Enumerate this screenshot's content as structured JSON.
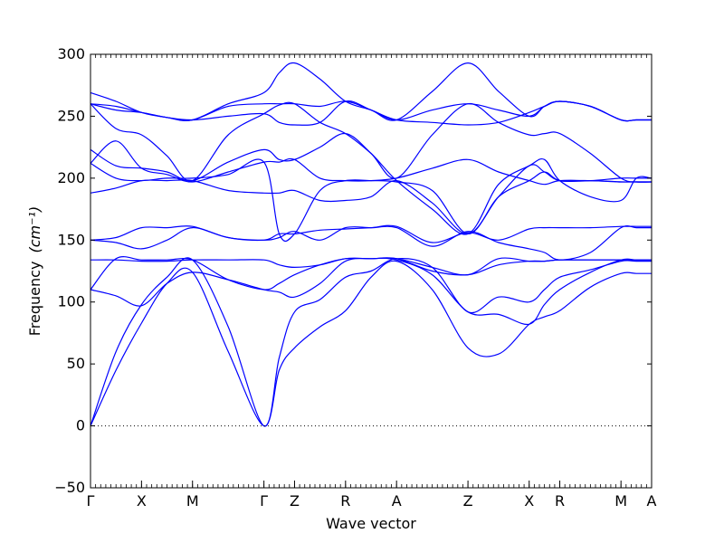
{
  "chart_data": {
    "type": "line",
    "title": "",
    "xlabel": "Wave vector",
    "ylabel": "Frequency",
    "ylabel_unit": "(cm⁻¹)",
    "ylim": [
      -50,
      300
    ],
    "yticks": [
      -50,
      0,
      50,
      100,
      150,
      200,
      250,
      300
    ],
    "xticks": [
      "Γ",
      "X",
      "M",
      "Γ",
      "Z",
      "R",
      "A",
      "Z",
      "X",
      "R",
      "M",
      "A"
    ],
    "xtick_positions": [
      0,
      0.5,
      1.0,
      1.7,
      2.0,
      2.5,
      3.0,
      3.7,
      4.3,
      4.6,
      5.2,
      5.5
    ],
    "zero_line": true,
    "line_color": "#0000ff",
    "series": [
      {
        "x": [
          0,
          0.25,
          0.5,
          0.75,
          1.0,
          1.35,
          1.7,
          1.85,
          2.0,
          2.25,
          2.5,
          2.75,
          3.0,
          3.35,
          3.7,
          4.0,
          4.3,
          4.45,
          4.6,
          4.9,
          5.2,
          5.35,
          5.5
        ],
        "values": [
          0,
          45,
          83,
          115,
          124,
          60,
          0,
          45,
          63,
          80,
          93,
          120,
          133,
          110,
          63,
          58,
          82,
          88,
          93,
          112,
          123,
          123,
          123
        ]
      },
      {
        "x": [
          0,
          0.25,
          0.5,
          0.75,
          1.0,
          1.35,
          1.7,
          1.85,
          2.0,
          2.25,
          2.5,
          2.75,
          3.0,
          3.35,
          3.7,
          4.0,
          4.3,
          4.45,
          4.6,
          4.9,
          5.2,
          5.35,
          5.5
        ],
        "values": [
          0,
          60,
          98,
          120,
          134,
          80,
          0,
          55,
          92,
          102,
          120,
          125,
          135,
          128,
          92,
          104,
          100,
          110,
          120,
          126,
          133,
          133,
          133
        ]
      },
      {
        "x": [
          0,
          0.25,
          0.5,
          0.75,
          1.0,
          1.35,
          1.7,
          1.85,
          2.0,
          2.25,
          2.5,
          2.75,
          3.0,
          3.35,
          3.7,
          4.0,
          4.3,
          4.45,
          4.6,
          4.9,
          5.2,
          5.35,
          5.5
        ],
        "values": [
          110,
          105,
          97,
          115,
          124,
          118,
          110,
          108,
          104,
          115,
          133,
          135,
          134,
          122,
          92,
          90,
          82,
          98,
          110,
          124,
          134,
          134,
          134
        ]
      },
      {
        "x": [
          0,
          0.25,
          0.5,
          0.75,
          1.0,
          1.35,
          1.7,
          1.85,
          2.0,
          2.25,
          2.5,
          2.75,
          3.0,
          3.35,
          3.7,
          4.0,
          4.3,
          4.45,
          4.6,
          4.9,
          5.2,
          5.35,
          5.5
        ],
        "values": [
          110,
          135,
          134,
          134,
          134,
          118,
          110,
          115,
          122,
          130,
          135,
          135,
          135,
          128,
          122,
          135,
          133,
          133,
          134,
          134,
          134,
          134,
          134
        ]
      },
      {
        "x": [
          0,
          0.25,
          0.5,
          0.75,
          1.0,
          1.35,
          1.7,
          1.85,
          2.0,
          2.25,
          2.5,
          2.75,
          3.0,
          3.35,
          3.7,
          4.0,
          4.3,
          4.45,
          4.6,
          4.9,
          5.2,
          5.35,
          5.5
        ],
        "values": [
          134,
          134,
          133,
          133,
          134,
          134,
          134,
          130,
          128,
          130,
          135,
          135,
          135,
          125,
          122,
          130,
          133,
          133,
          134,
          134,
          134,
          134,
          134
        ]
      },
      {
        "x": [
          0,
          0.25,
          0.5,
          0.75,
          1.0,
          1.35,
          1.7,
          1.85,
          2.0,
          2.25,
          2.5,
          2.75,
          3.0,
          3.35,
          3.7,
          4.0,
          4.3,
          4.45,
          4.6,
          4.9,
          5.2,
          5.35,
          5.5
        ],
        "values": [
          150,
          148,
          143,
          150,
          160,
          152,
          150,
          152,
          157,
          150,
          160,
          160,
          160,
          145,
          157,
          148,
          143,
          140,
          134,
          140,
          160,
          160,
          160
        ]
      },
      {
        "x": [
          0,
          0.25,
          0.5,
          0.75,
          1.0,
          1.35,
          1.7,
          1.85,
          2.0,
          2.25,
          2.5,
          2.75,
          3.0,
          3.35,
          3.7,
          4.0,
          4.3,
          4.45,
          4.6,
          4.9,
          5.2,
          5.35,
          5.5
        ],
        "values": [
          150,
          152,
          160,
          160,
          161,
          152,
          150,
          155,
          155,
          158,
          159,
          160,
          161,
          148,
          156,
          150,
          159,
          160,
          160,
          160,
          161,
          161,
          161
        ]
      },
      {
        "x": [
          0,
          0.25,
          0.5,
          0.75,
          1.0,
          1.35,
          1.7,
          1.85,
          2.0,
          2.25,
          2.5,
          2.75,
          3.0,
          3.35,
          3.7,
          4.0,
          4.3,
          4.45,
          4.6,
          4.9,
          5.2,
          5.35,
          5.5
        ],
        "values": [
          188,
          192,
          198,
          198,
          198,
          190,
          188,
          188,
          190,
          182,
          182,
          185,
          198,
          180,
          155,
          185,
          210,
          205,
          198,
          198,
          197,
          197,
          197
        ]
      },
      {
        "x": [
          0,
          0.25,
          0.5,
          0.75,
          1.0,
          1.35,
          1.7,
          1.85,
          2.0,
          2.25,
          2.5,
          2.75,
          3.0,
          3.35,
          3.7,
          4.0,
          4.3,
          4.45,
          4.6,
          4.9,
          5.2,
          5.35,
          5.5
        ],
        "values": [
          212,
          200,
          198,
          200,
          200,
          203,
          213,
          155,
          155,
          190,
          198,
          198,
          197,
          190,
          155,
          185,
          198,
          205,
          198,
          198,
          200,
          200,
          200
        ]
      },
      {
        "x": [
          0,
          0.25,
          0.5,
          0.75,
          1.0,
          1.35,
          1.7,
          1.85,
          2.0,
          2.25,
          2.5,
          2.75,
          3.0,
          3.35,
          3.7,
          4.0,
          4.3,
          4.45,
          4.6,
          4.9,
          5.2,
          5.35,
          5.5
        ],
        "values": [
          212,
          230,
          208,
          203,
          197,
          205,
          213,
          213,
          215,
          200,
          198,
          198,
          200,
          208,
          215,
          205,
          198,
          195,
          198,
          198,
          197,
          197,
          197
        ]
      },
      {
        "x": [
          0,
          0.25,
          0.5,
          0.75,
          1.0,
          1.35,
          1.7,
          1.85,
          2.0,
          2.25,
          2.5,
          2.75,
          3.0,
          3.35,
          3.7,
          4.0,
          4.3,
          4.45,
          4.6,
          4.9,
          5.2,
          5.35,
          5.5
        ],
        "values": [
          223,
          210,
          208,
          205,
          198,
          213,
          223,
          215,
          215,
          225,
          236,
          220,
          198,
          175,
          155,
          195,
          210,
          215,
          198,
          185,
          182,
          200,
          200
        ]
      },
      {
        "x": [
          0,
          0.25,
          0.5,
          0.75,
          1.0,
          1.35,
          1.7,
          1.85,
          2.0,
          2.25,
          2.5,
          2.75,
          3.0,
          3.35,
          3.7,
          4.0,
          4.3,
          4.45,
          4.6,
          4.9,
          5.2,
          5.35,
          5.5
        ],
        "values": [
          260,
          240,
          235,
          218,
          198,
          235,
          252,
          259,
          260,
          245,
          236,
          220,
          200,
          235,
          260,
          245,
          235,
          236,
          236,
          220,
          200,
          197,
          197
        ]
      },
      {
        "x": [
          0,
          0.25,
          0.5,
          0.75,
          1.0,
          1.35,
          1.7,
          1.85,
          2.0,
          2.25,
          2.5,
          2.75,
          3.0,
          3.35,
          3.7,
          4.0,
          4.3,
          4.45,
          4.6,
          4.9,
          5.2,
          5.35,
          5.5
        ],
        "values": [
          260,
          255,
          253,
          249,
          247,
          250,
          252,
          245,
          243,
          245,
          262,
          255,
          247,
          245,
          243,
          245,
          253,
          258,
          262,
          258,
          247,
          247,
          247
        ]
      },
      {
        "x": [
          0,
          0.25,
          0.5,
          0.75,
          1.0,
          1.35,
          1.7,
          1.85,
          2.0,
          2.25,
          2.5,
          2.75,
          3.0,
          3.35,
          3.7,
          4.0,
          4.3,
          4.45,
          4.6,
          4.9,
          5.2,
          5.35,
          5.5
        ],
        "values": [
          269,
          262,
          253,
          249,
          247,
          260,
          269,
          285,
          293,
          280,
          262,
          255,
          247,
          270,
          293,
          270,
          250,
          258,
          262,
          258,
          247,
          247,
          247
        ]
      },
      {
        "x": [
          0,
          0.25,
          0.5,
          0.75,
          1.0,
          1.35,
          1.7,
          1.85,
          2.0,
          2.25,
          2.5,
          2.75,
          3.0,
          3.35,
          3.7,
          4.0,
          4.3,
          4.45,
          4.6,
          4.9,
          5.2,
          5.35,
          5.5
        ],
        "values": [
          260,
          258,
          253,
          249,
          247,
          258,
          260,
          260,
          260,
          258,
          262,
          255,
          247,
          255,
          260,
          255,
          250,
          258,
          262,
          258,
          247,
          247,
          247
        ]
      }
    ]
  }
}
